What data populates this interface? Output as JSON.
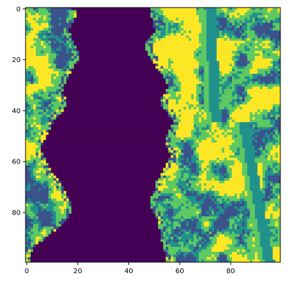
{
  "chart_data": {
    "type": "heatmap",
    "title": "",
    "xlabel": "",
    "ylabel": "",
    "x_extent": [
      0,
      99
    ],
    "y_extent": [
      0,
      99
    ],
    "y_inverted": true,
    "x_ticks": [
      0,
      20,
      40,
      60,
      80
    ],
    "y_ticks": [
      0,
      20,
      40,
      60,
      80
    ],
    "x_tick_labels": [
      "0",
      "20",
      "40",
      "60",
      "80"
    ],
    "y_tick_labels": [
      "0",
      "20",
      "40",
      "60",
      "80"
    ],
    "grid": false,
    "legend": "none",
    "colormap": "viridis",
    "class_values": [
      0,
      1,
      2,
      3,
      4
    ],
    "class_colors": [
      "#440154",
      "#3b528b",
      "#21918c",
      "#5ec962",
      "#fde725"
    ],
    "river_class": 0,
    "river_left_edge_x": [
      18,
      20,
      19,
      18,
      17,
      17,
      18,
      18,
      19,
      20,
      21,
      20,
      19,
      18,
      17,
      16,
      15,
      15,
      14,
      15,
      16,
      15,
      14,
      12,
      11,
      10,
      9,
      8,
      7,
      6,
      6,
      6,
      7,
      8,
      9,
      10,
      12,
      13,
      14,
      15,
      16,
      17,
      18,
      18,
      17,
      16,
      14,
      12,
      10,
      8,
      5,
      3,
      2,
      2,
      2
    ],
    "river_right_edge_x": [
      48,
      48,
      49,
      49,
      50,
      50,
      48,
      47,
      46,
      47,
      48,
      49,
      50,
      51,
      53,
      54,
      55,
      55,
      54,
      53,
      52,
      53,
      55,
      56,
      57,
      57,
      56,
      55,
      54,
      54,
      55,
      56,
      56,
      55,
      54,
      53,
      52,
      51,
      50,
      50,
      49,
      48,
      48,
      49,
      50,
      51,
      51,
      52,
      52,
      52,
      53,
      53,
      54,
      54,
      54
    ],
    "bands": [
      {
        "class": 2,
        "x_at_top": 70,
        "x_at_bottom": 99,
        "width": 4
      },
      {
        "class": 2,
        "x_at_top": 72,
        "x_at_bottom": 99,
        "width": 2
      },
      {
        "class": 3,
        "x_at_top": 68,
        "x_at_bottom": 97,
        "width": 2
      }
    ]
  }
}
